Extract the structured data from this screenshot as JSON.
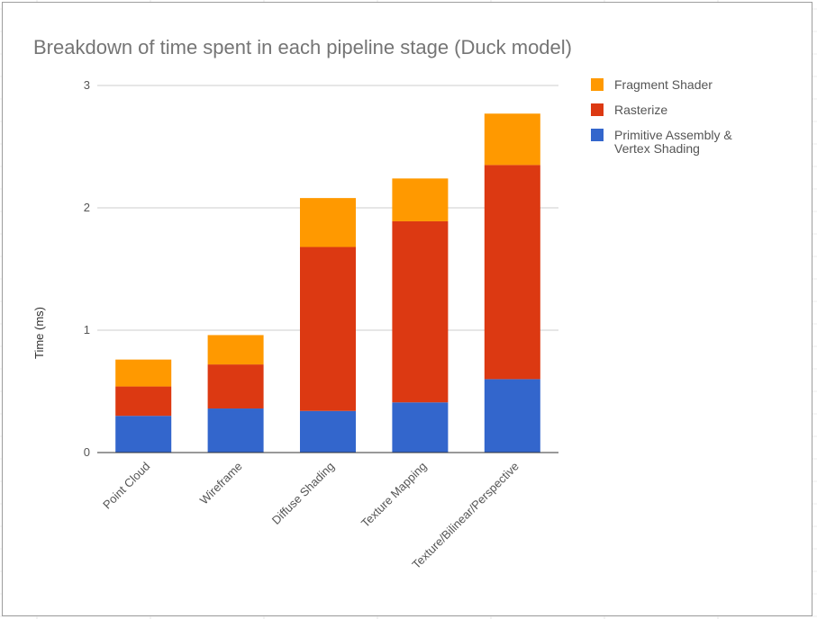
{
  "chart_data": {
    "type": "bar",
    "stacked": true,
    "title": "Breakdown of time spent in each pipeline stage (Duck model)",
    "ylabel": "Time (ms)",
    "xlabel": "",
    "ylim": [
      0,
      3
    ],
    "yticks": [
      "0",
      "1",
      "2",
      "3"
    ],
    "grid": true,
    "legend_position": "right",
    "categories": [
      "Point Cloud",
      "Wireframe",
      "Diffuse Shading",
      "Texture Mapping",
      "Texture/Bilinear/Perspective"
    ],
    "series": [
      {
        "name": "Primitive Assembly & Vertex Shading",
        "color": "#3366cc",
        "values": [
          0.3,
          0.36,
          0.34,
          0.41,
          0.6
        ]
      },
      {
        "name": "Rasterize",
        "color": "#dc3912",
        "values": [
          0.24,
          0.36,
          1.34,
          1.48,
          1.75
        ]
      },
      {
        "name": "Fragment Shader",
        "color": "#ff9900",
        "values": [
          0.22,
          0.24,
          0.4,
          0.35,
          0.42
        ]
      }
    ],
    "legend": [
      {
        "lines": [
          "Fragment Shader"
        ],
        "color": "#ff9900"
      },
      {
        "lines": [
          "Rasterize"
        ],
        "color": "#dc3912"
      },
      {
        "lines": [
          "Primitive Assembly &",
          "Vertex Shading"
        ],
        "color": "#3366cc"
      }
    ]
  }
}
